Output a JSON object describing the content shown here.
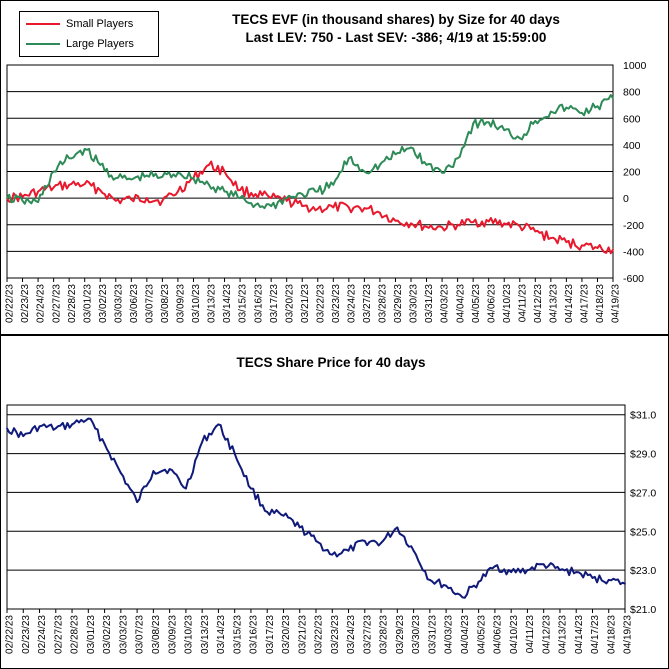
{
  "colors": {
    "small": "#e8192c",
    "large": "#2e8b57",
    "price": "#101a7a",
    "grid": "#000000"
  },
  "chart_data": [
    {
      "type": "line",
      "title": "TECS EVF (in thousand shares) by Size for 40 days",
      "subtitle": "Last LEV: 750 - Last SEV: -386; 4/19 at 15:59:00",
      "ylim": [
        -600,
        1000
      ],
      "yticks": [
        -600,
        -400,
        -200,
        0,
        200,
        400,
        600,
        800,
        1000
      ],
      "ytick_labels": [
        "-600",
        "-400",
        "-200",
        "0",
        "200",
        "400",
        "600",
        "800",
        "1000"
      ],
      "grid": "horizontal",
      "legend_position": "top-left",
      "x_dates": [
        "02/22/23",
        "02/23/23",
        "02/24/23",
        "02/27/23",
        "02/28/23",
        "03/01/23",
        "03/02/23",
        "03/03/23",
        "03/06/23",
        "03/07/23",
        "03/08/23",
        "03/09/23",
        "03/10/23",
        "03/13/23",
        "03/14/23",
        "03/15/23",
        "03/16/23",
        "03/17/23",
        "03/20/23",
        "03/21/23",
        "03/22/23",
        "03/23/23",
        "03/24/23",
        "03/27/23",
        "03/28/23",
        "03/29/23",
        "03/30/23",
        "03/31/23",
        "04/03/23",
        "04/04/23",
        "04/05/23",
        "04/06/23",
        "04/10/23",
        "04/11/23",
        "04/12/23",
        "04/13/23",
        "04/14/23",
        "04/17/23",
        "04/18/23",
        "04/19/23"
      ],
      "series": [
        {
          "name": "Small Players",
          "values": [
            0,
            10,
            50,
            80,
            100,
            105,
            60,
            -20,
            -10,
            0,
            -20,
            50,
            150,
            250,
            200,
            60,
            30,
            0,
            -20,
            -60,
            -80,
            -70,
            -70,
            -75,
            -110,
            -170,
            -190,
            -215,
            -220,
            -200,
            -180,
            -175,
            -190,
            -210,
            -250,
            -300,
            -330,
            -355,
            -375,
            -386
          ]
        },
        {
          "name": "Large Players",
          "values": [
            0,
            -20,
            -30,
            200,
            300,
            370,
            250,
            150,
            140,
            170,
            160,
            190,
            150,
            100,
            50,
            0,
            -50,
            -60,
            0,
            30,
            50,
            100,
            300,
            200,
            250,
            330,
            380,
            250,
            190,
            300,
            560,
            570,
            510,
            450,
            580,
            650,
            680,
            640,
            690,
            750
          ]
        }
      ]
    },
    {
      "type": "line",
      "title": "TECS Share Price for 40 days",
      "ylim": [
        21.0,
        31.5
      ],
      "yticks": [
        21.0,
        23.0,
        25.0,
        27.0,
        29.0,
        31.0
      ],
      "ytick_labels": [
        "$21.0",
        "$23.0",
        "$25.0",
        "$27.0",
        "$29.0",
        "$31.0"
      ],
      "grid": "horizontal",
      "x_dates": [
        "02/22/23",
        "02/23/23",
        "02/24/23",
        "02/27/23",
        "02/28/23",
        "03/01/23",
        "03/02/23",
        "03/03/23",
        "03/07/23",
        "03/08/23",
        "03/09/23",
        "03/10/23",
        "03/13/23",
        "03/14/23",
        "03/15/23",
        "03/16/23",
        "03/17/23",
        "03/20/23",
        "03/21/23",
        "03/22/23",
        "03/23/23",
        "03/24/23",
        "03/27/23",
        "03/28/23",
        "03/29/23",
        "03/30/23",
        "03/31/23",
        "04/03/23",
        "04/04/23",
        "04/05/23",
        "04/06/23",
        "04/10/23",
        "04/11/23",
        "04/12/23",
        "04/13/23",
        "04/14/23",
        "04/17/23",
        "04/18/23",
        "04/19/23"
      ],
      "series": [
        {
          "name": "",
          "values": [
            30.3,
            29.9,
            30.4,
            30.3,
            30.5,
            30.8,
            29.5,
            28.0,
            26.5,
            28.1,
            28.2,
            27.2,
            29.6,
            30.5,
            29.0,
            27.2,
            26.0,
            25.8,
            25.2,
            24.5,
            23.8,
            24.0,
            24.5,
            24.4,
            25.2,
            24.0,
            22.5,
            22.2,
            21.6,
            22.4,
            23.2,
            22.9,
            23.0,
            23.3,
            23.0,
            22.9,
            22.6,
            22.5,
            22.3
          ]
        }
      ]
    }
  ]
}
